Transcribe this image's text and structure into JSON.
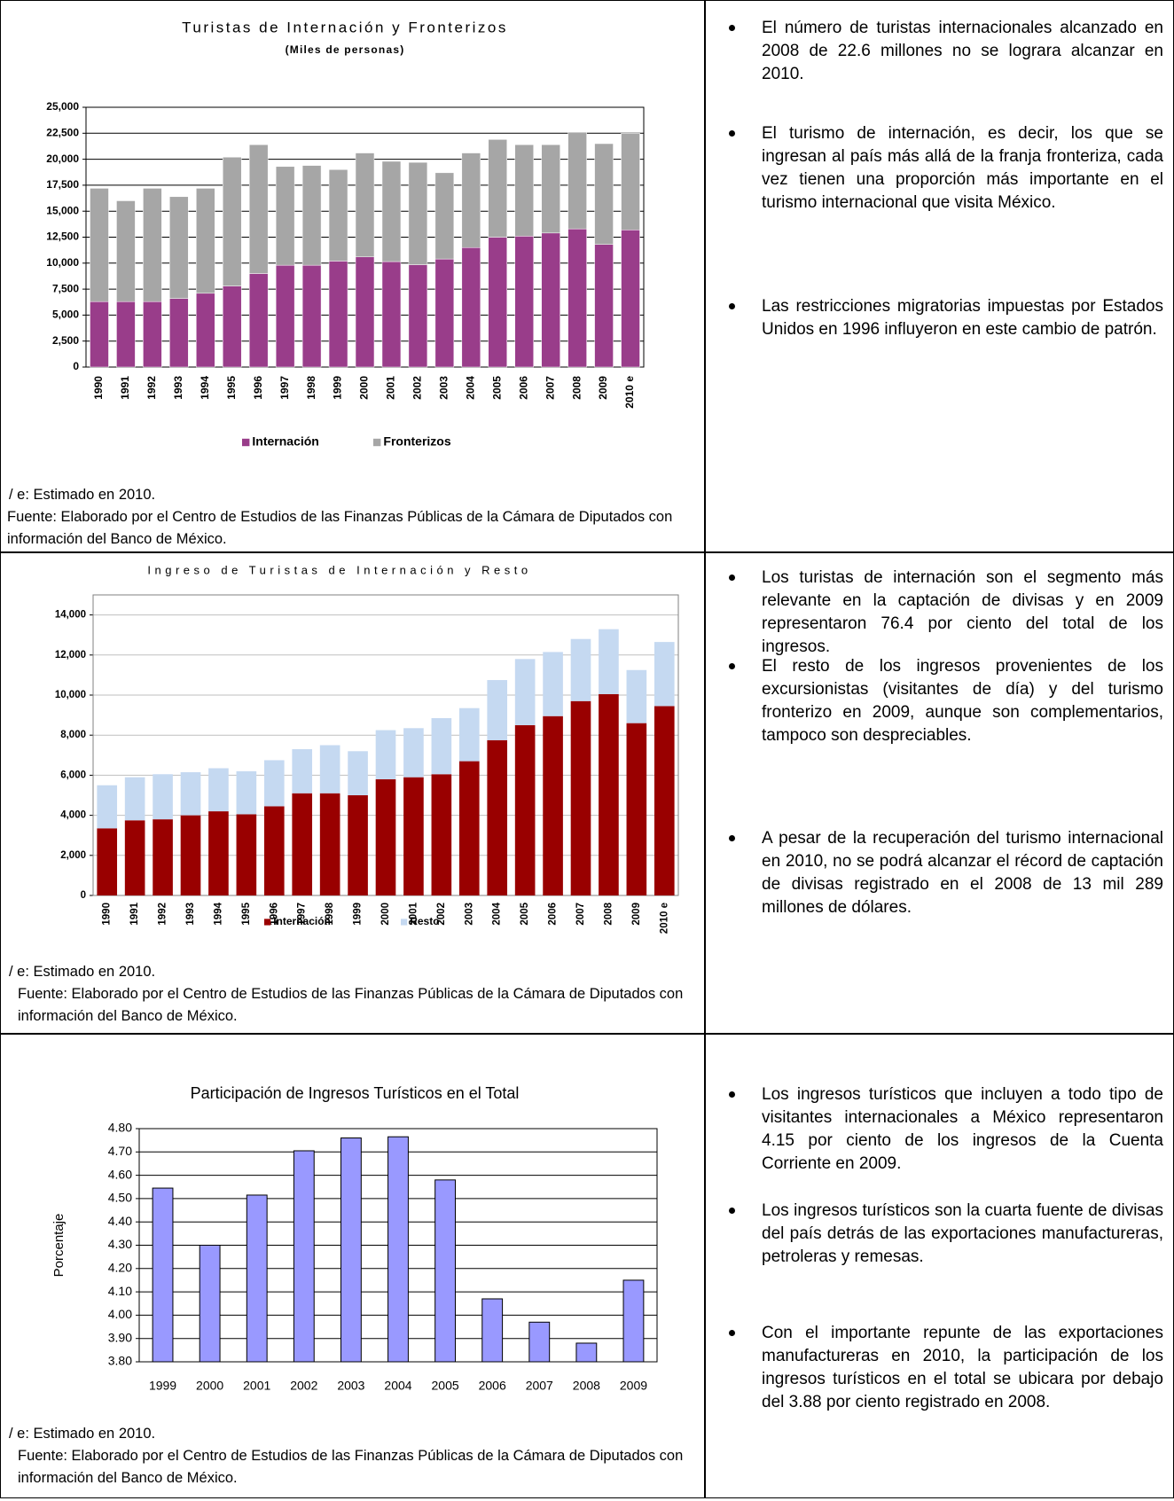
{
  "sections": [
    {
      "chart": {
        "type": "stacked-bar",
        "title": "Turistas de Internación y Fronterizos",
        "subtitle": "(Miles de personas)",
        "categories": [
          "1990",
          "1991",
          "1992",
          "1993",
          "1994",
          "1995",
          "1996",
          "1997",
          "1998",
          "1999",
          "2000",
          "2001",
          "2002",
          "2003",
          "2004",
          "2005",
          "2006",
          "2007",
          "2008",
          "2009",
          "2010 e"
        ],
        "series": [
          {
            "name": "Internación",
            "color": "#993d8a",
            "values": [
              6300,
              6300,
              6300,
              6600,
              7100,
              7800,
              9000,
              9800,
              9800,
              10200,
              10600,
              10150,
              9850,
              10400,
              11500,
              12500,
              12600,
              12900,
              13300,
              11800,
              13200
            ]
          },
          {
            "name": "Fronterizos",
            "color": "#a6a6a6",
            "values": [
              10900,
              9700,
              10900,
              9800,
              10100,
              12400,
              12400,
              9500,
              9600,
              8800,
              10000,
              9650,
              9850,
              8300,
              9100,
              9400,
              8800,
              8500,
              9300,
              9700,
              9300
            ]
          }
        ],
        "ylim": [
          0,
          25000
        ],
        "yticks": [
          0,
          {
            "value": 2500,
            "label": "2,500"
          },
          {
            "value": 5000,
            "label": "5,000"
          },
          {
            "value": 7500,
            "label": "7,500"
          },
          {
            "value": 10000,
            "label": "10,000"
          },
          {
            "value": 12500,
            "label": "12,500"
          },
          {
            "value": 15000,
            "label": "15,000"
          },
          {
            "value": 17500,
            "label": "17,500"
          },
          {
            "value": 20000,
            "label": "20,000"
          },
          {
            "value": 22500,
            "label": "22,500"
          },
          {
            "value": 25000,
            "label": "25,000"
          }
        ],
        "grid": true,
        "grid_color": "#000000"
      },
      "notes": [
        "/ e: Estimado en 2010.",
        "Fuente: Elaborado por el Centro de Estudios de las Finanzas Públicas de la Cámara de Diputados con información del Banco de México."
      ],
      "bullets": [
        "El número de turistas internacionales alcanzado en 2008 de 22.6 millones no se lograra alcanzar en 2010.",
        "El turismo de internación, es decir, los que se ingresan al país más allá de la franja fronteriza, cada vez tienen una proporción más importante en el turismo internacional que visita México.",
        "Las restricciones migratorias impuestas por Estados Unidos en 1996 influyeron en este cambio de patrón."
      ]
    },
    {
      "chart": {
        "type": "stacked-bar",
        "title": "Ingreso de Turistas de Internación y Resto",
        "categories": [
          "1990",
          "1991",
          "1992",
          "1993",
          "1994",
          "1995",
          "1996",
          "1997",
          "1998",
          "1999",
          "2000",
          "2001",
          "2002",
          "2003",
          "2004",
          "2005",
          "2006",
          "2007",
          "2008",
          "2009",
          "2010 e"
        ],
        "series": [
          {
            "name": "Internación",
            "color": "#990000",
            "values": [
              3350,
              3750,
              3800,
              4000,
              4200,
              4050,
              4450,
              5100,
              5100,
              5000,
              5800,
              5900,
              6050,
              6700,
              7750,
              8500,
              8950,
              9700,
              10050,
              8600,
              9450
            ]
          },
          {
            "name": "Resto",
            "color": "#c5d9f1",
            "values": [
              2150,
              2150,
              2250,
              2150,
              2150,
              2150,
              2300,
              2200,
              2400,
              2200,
              2450,
              2450,
              2800,
              2650,
              3000,
              3300,
              3200,
              3100,
              3239,
              2650,
              3200
            ]
          }
        ],
        "ylim": [
          0,
          15000
        ],
        "yticks": [
          0,
          {
            "value": 2000,
            "label": "2,000"
          },
          {
            "value": 4000,
            "label": "4,000"
          },
          {
            "value": 6000,
            "label": "6,000"
          },
          {
            "value": 8000,
            "label": "8,000"
          },
          {
            "value": 10000,
            "label": "10,000"
          },
          {
            "value": 12000,
            "label": "12,000"
          },
          {
            "value": 14000,
            "label": "14,000"
          }
        ],
        "grid": true,
        "grid_color": "#bfbfbf"
      },
      "notes": [
        "/ e: Estimado en 2010.",
        "Fuente: Elaborado por el Centro de Estudios de las Finanzas Públicas de la Cámara de Diputados con información del Banco de México."
      ],
      "bullets": [
        "Los turistas de internación son el segmento más relevante en la captación de divisas y en 2009 representaron 76.4 por ciento del total de los ingresos.",
        "El resto de los ingresos provenientes de los excursionistas (visitantes de día) y del turismo fronterizo en 2009, aunque son complementarios, tampoco son despreciables.",
        "A pesar de la recuperación del turismo internacional en 2010, no se podrá alcanzar el récord de captación de divisas registrado en el 2008 de 13 mil 289 millones de dólares."
      ]
    },
    {
      "chart": {
        "type": "bar",
        "title": "Participación de Ingresos Turísticos en el Total",
        "ylabel": "Porcentaje",
        "categories": [
          "1999",
          "2000",
          "2001",
          "2002",
          "2003",
          "2004",
          "2005",
          "2006",
          "2007",
          "2008",
          "2009"
        ],
        "values": [
          4.545,
          4.3,
          4.515,
          4.705,
          4.76,
          4.765,
          4.58,
          4.07,
          3.97,
          3.88,
          4.15
        ],
        "color": "#9999ff",
        "ylim": [
          3.8,
          4.8
        ],
        "yticks": [
          {
            "value": 3.8,
            "label": "3.80"
          },
          {
            "value": 3.9,
            "label": "3.90"
          },
          {
            "value": 4.0,
            "label": "4.00"
          },
          {
            "value": 4.1,
            "label": "4.10"
          },
          {
            "value": 4.2,
            "label": "4.20"
          },
          {
            "value": 4.3,
            "label": "4.30"
          },
          {
            "value": 4.4,
            "label": "4.40"
          },
          {
            "value": 4.5,
            "label": "4.50"
          },
          {
            "value": 4.6,
            "label": "4.60"
          },
          {
            "value": 4.7,
            "label": "4.70"
          },
          {
            "value": 4.8,
            "label": "4.80"
          }
        ],
        "grid": true,
        "grid_color": "#000000"
      },
      "notes": [
        "/ e: Estimado en 2010.",
        "Fuente: Elaborado por el Centro de Estudios de las Finanzas Públicas de la Cámara de Diputados con información del Banco de México."
      ],
      "bullets": [
        "Los ingresos turísticos que incluyen a todo tipo de visitantes internacionales a México representaron 4.15 por ciento de los ingresos de la Cuenta Corriente en 2009.",
        "Los ingresos turísticos son la cuarta fuente de divisas del país detrás de las exportaciones manufactureras, petroleras y remesas.",
        "Con el importante repunte de las exportaciones manufactureras en 2010, la participación de los ingresos turísticos en el total se ubicara por debajo del 3.88 por ciento registrado en 2008."
      ]
    }
  ]
}
